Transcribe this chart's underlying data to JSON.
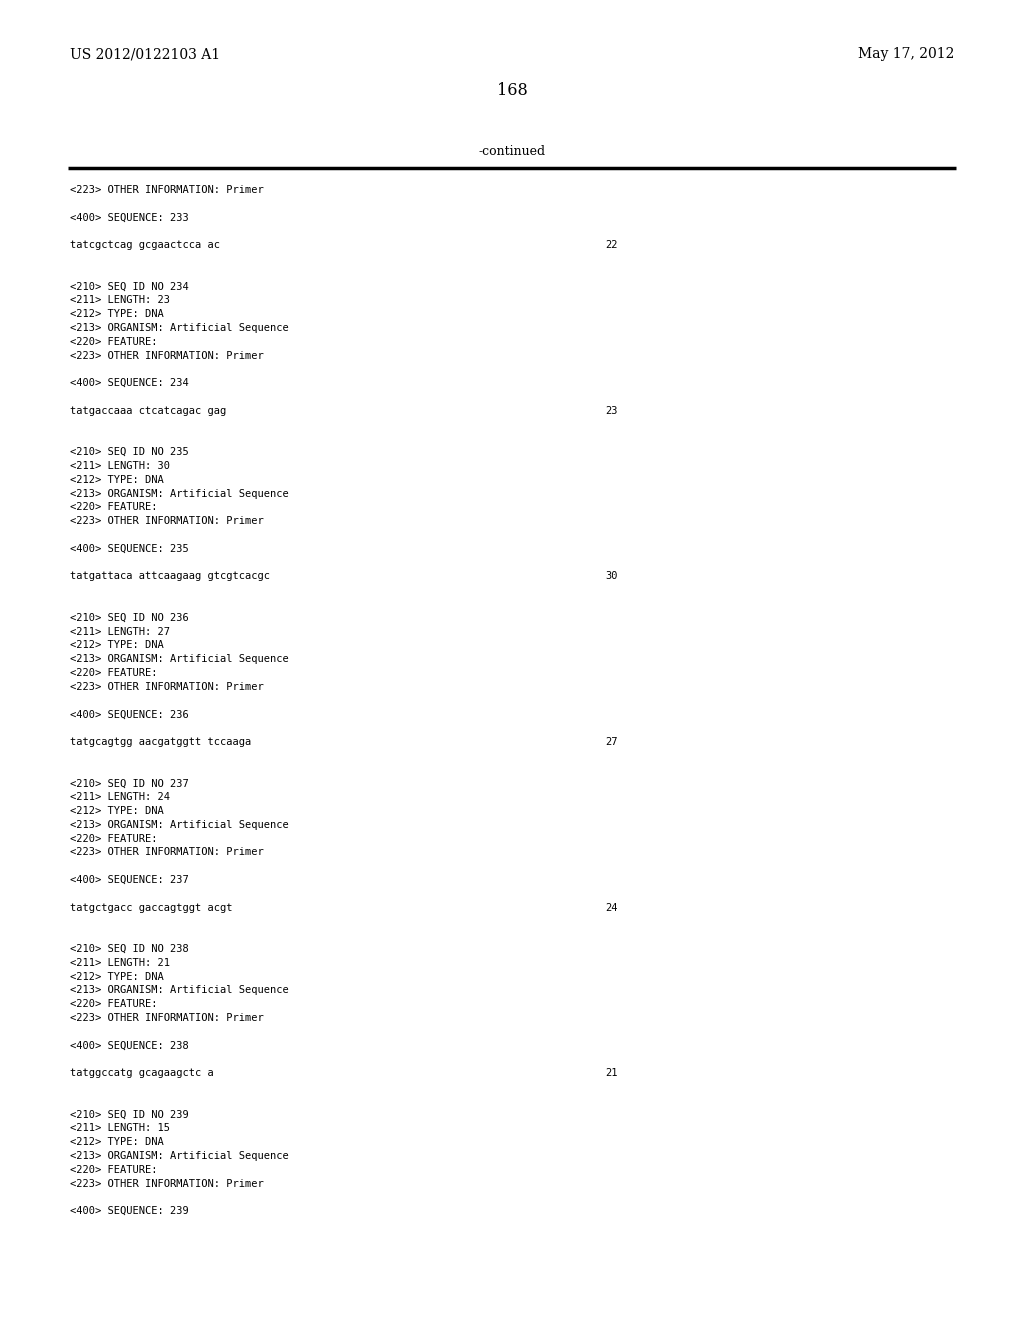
{
  "bg_color": "#ffffff",
  "header_left": "US 2012/0122103 A1",
  "header_right": "May 17, 2012",
  "page_number": "168",
  "continued_label": "-continued",
  "mono_fontsize": 7.5,
  "header_fontsize": 10.0,
  "page_num_fontsize": 11.5,
  "all_lines": [
    {
      "text": "<223> OTHER INFORMATION: Primer",
      "num": null
    },
    {
      "text": "",
      "num": null
    },
    {
      "text": "<400> SEQUENCE: 233",
      "num": null
    },
    {
      "text": "",
      "num": null
    },
    {
      "text": "tatcgctcag gcgaactcca ac",
      "num": "22"
    },
    {
      "text": "",
      "num": null
    },
    {
      "text": "",
      "num": null
    },
    {
      "text": "<210> SEQ ID NO 234",
      "num": null
    },
    {
      "text": "<211> LENGTH: 23",
      "num": null
    },
    {
      "text": "<212> TYPE: DNA",
      "num": null
    },
    {
      "text": "<213> ORGANISM: Artificial Sequence",
      "num": null
    },
    {
      "text": "<220> FEATURE:",
      "num": null
    },
    {
      "text": "<223> OTHER INFORMATION: Primer",
      "num": null
    },
    {
      "text": "",
      "num": null
    },
    {
      "text": "<400> SEQUENCE: 234",
      "num": null
    },
    {
      "text": "",
      "num": null
    },
    {
      "text": "tatgaccaaa ctcatcagac gag",
      "num": "23"
    },
    {
      "text": "",
      "num": null
    },
    {
      "text": "",
      "num": null
    },
    {
      "text": "<210> SEQ ID NO 235",
      "num": null
    },
    {
      "text": "<211> LENGTH: 30",
      "num": null
    },
    {
      "text": "<212> TYPE: DNA",
      "num": null
    },
    {
      "text": "<213> ORGANISM: Artificial Sequence",
      "num": null
    },
    {
      "text": "<220> FEATURE:",
      "num": null
    },
    {
      "text": "<223> OTHER INFORMATION: Primer",
      "num": null
    },
    {
      "text": "",
      "num": null
    },
    {
      "text": "<400> SEQUENCE: 235",
      "num": null
    },
    {
      "text": "",
      "num": null
    },
    {
      "text": "tatgattaca attcaagaag gtcgtcacgc",
      "num": "30"
    },
    {
      "text": "",
      "num": null
    },
    {
      "text": "",
      "num": null
    },
    {
      "text": "<210> SEQ ID NO 236",
      "num": null
    },
    {
      "text": "<211> LENGTH: 27",
      "num": null
    },
    {
      "text": "<212> TYPE: DNA",
      "num": null
    },
    {
      "text": "<213> ORGANISM: Artificial Sequence",
      "num": null
    },
    {
      "text": "<220> FEATURE:",
      "num": null
    },
    {
      "text": "<223> OTHER INFORMATION: Primer",
      "num": null
    },
    {
      "text": "",
      "num": null
    },
    {
      "text": "<400> SEQUENCE: 236",
      "num": null
    },
    {
      "text": "",
      "num": null
    },
    {
      "text": "tatgcagtgg aacgatggtt tccaaga",
      "num": "27"
    },
    {
      "text": "",
      "num": null
    },
    {
      "text": "",
      "num": null
    },
    {
      "text": "<210> SEQ ID NO 237",
      "num": null
    },
    {
      "text": "<211> LENGTH: 24",
      "num": null
    },
    {
      "text": "<212> TYPE: DNA",
      "num": null
    },
    {
      "text": "<213> ORGANISM: Artificial Sequence",
      "num": null
    },
    {
      "text": "<220> FEATURE:",
      "num": null
    },
    {
      "text": "<223> OTHER INFORMATION: Primer",
      "num": null
    },
    {
      "text": "",
      "num": null
    },
    {
      "text": "<400> SEQUENCE: 237",
      "num": null
    },
    {
      "text": "",
      "num": null
    },
    {
      "text": "tatgctgacc gaccagtggt acgt",
      "num": "24"
    },
    {
      "text": "",
      "num": null
    },
    {
      "text": "",
      "num": null
    },
    {
      "text": "<210> SEQ ID NO 238",
      "num": null
    },
    {
      "text": "<211> LENGTH: 21",
      "num": null
    },
    {
      "text": "<212> TYPE: DNA",
      "num": null
    },
    {
      "text": "<213> ORGANISM: Artificial Sequence",
      "num": null
    },
    {
      "text": "<220> FEATURE:",
      "num": null
    },
    {
      "text": "<223> OTHER INFORMATION: Primer",
      "num": null
    },
    {
      "text": "",
      "num": null
    },
    {
      "text": "<400> SEQUENCE: 238",
      "num": null
    },
    {
      "text": "",
      "num": null
    },
    {
      "text": "tatggccatg gcagaagctc a",
      "num": "21"
    },
    {
      "text": "",
      "num": null
    },
    {
      "text": "",
      "num": null
    },
    {
      "text": "<210> SEQ ID NO 239",
      "num": null
    },
    {
      "text": "<211> LENGTH: 15",
      "num": null
    },
    {
      "text": "<212> TYPE: DNA",
      "num": null
    },
    {
      "text": "<213> ORGANISM: Artificial Sequence",
      "num": null
    },
    {
      "text": "<220> FEATURE:",
      "num": null
    },
    {
      "text": "<223> OTHER INFORMATION: Primer",
      "num": null
    },
    {
      "text": "",
      "num": null
    },
    {
      "text": "<400> SEQUENCE: 239",
      "num": null
    }
  ]
}
